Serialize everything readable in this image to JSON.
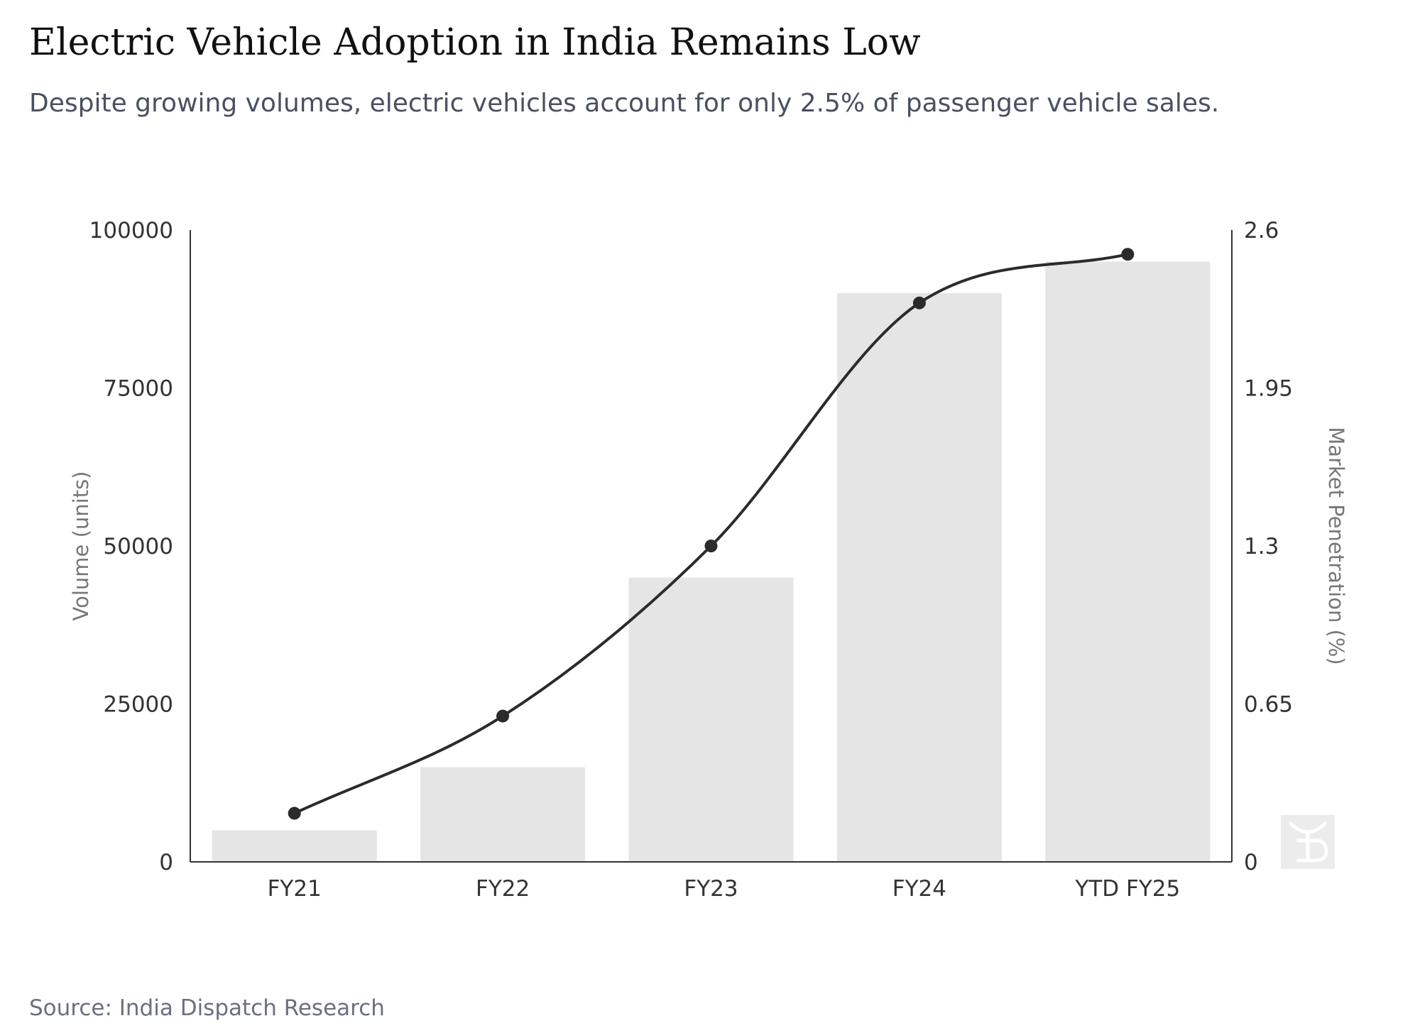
{
  "title": "Electric Vehicle Adoption in India Remains Low",
  "subtitle": "Despite growing volumes, electric vehicles account for only 2.5% of passenger vehicle sales.",
  "source": "Source: India Dispatch Research",
  "colors": {
    "bar": "#e5e5e5",
    "line": "#2b2b2b",
    "axis": "#333333",
    "title": "#111111",
    "subtitle": "#4a5060",
    "axis_title": "#777777",
    "watermark_bg": "#ececec"
  },
  "logo": {
    "icon": "watermark-logo-icon",
    "text": "ID"
  },
  "chart_data": {
    "type": "bar",
    "categories": [
      "FY21",
      "FY22",
      "FY23",
      "FY24",
      "YTD FY25"
    ],
    "series": [
      {
        "type": "bar",
        "axis": "left",
        "values": [
          5000,
          15000,
          45000,
          90000,
          95000
        ]
      },
      {
        "type": "line",
        "axis": "right",
        "smooth": true,
        "markers": true,
        "values": [
          0.2,
          0.6,
          1.3,
          2.3,
          2.5
        ]
      }
    ],
    "y_left": {
      "label": "Volume (units)",
      "ylim": [
        0,
        100000
      ],
      "ticks": [
        "0",
        "25000",
        "50000",
        "75000",
        "100000"
      ]
    },
    "y_right": {
      "label": "Market Penetration (%)",
      "ylim": [
        0,
        2.6
      ],
      "ticks": [
        "0",
        "0.65",
        "1.3",
        "1.95",
        "2.6"
      ]
    },
    "grid": false,
    "legend": "none"
  }
}
